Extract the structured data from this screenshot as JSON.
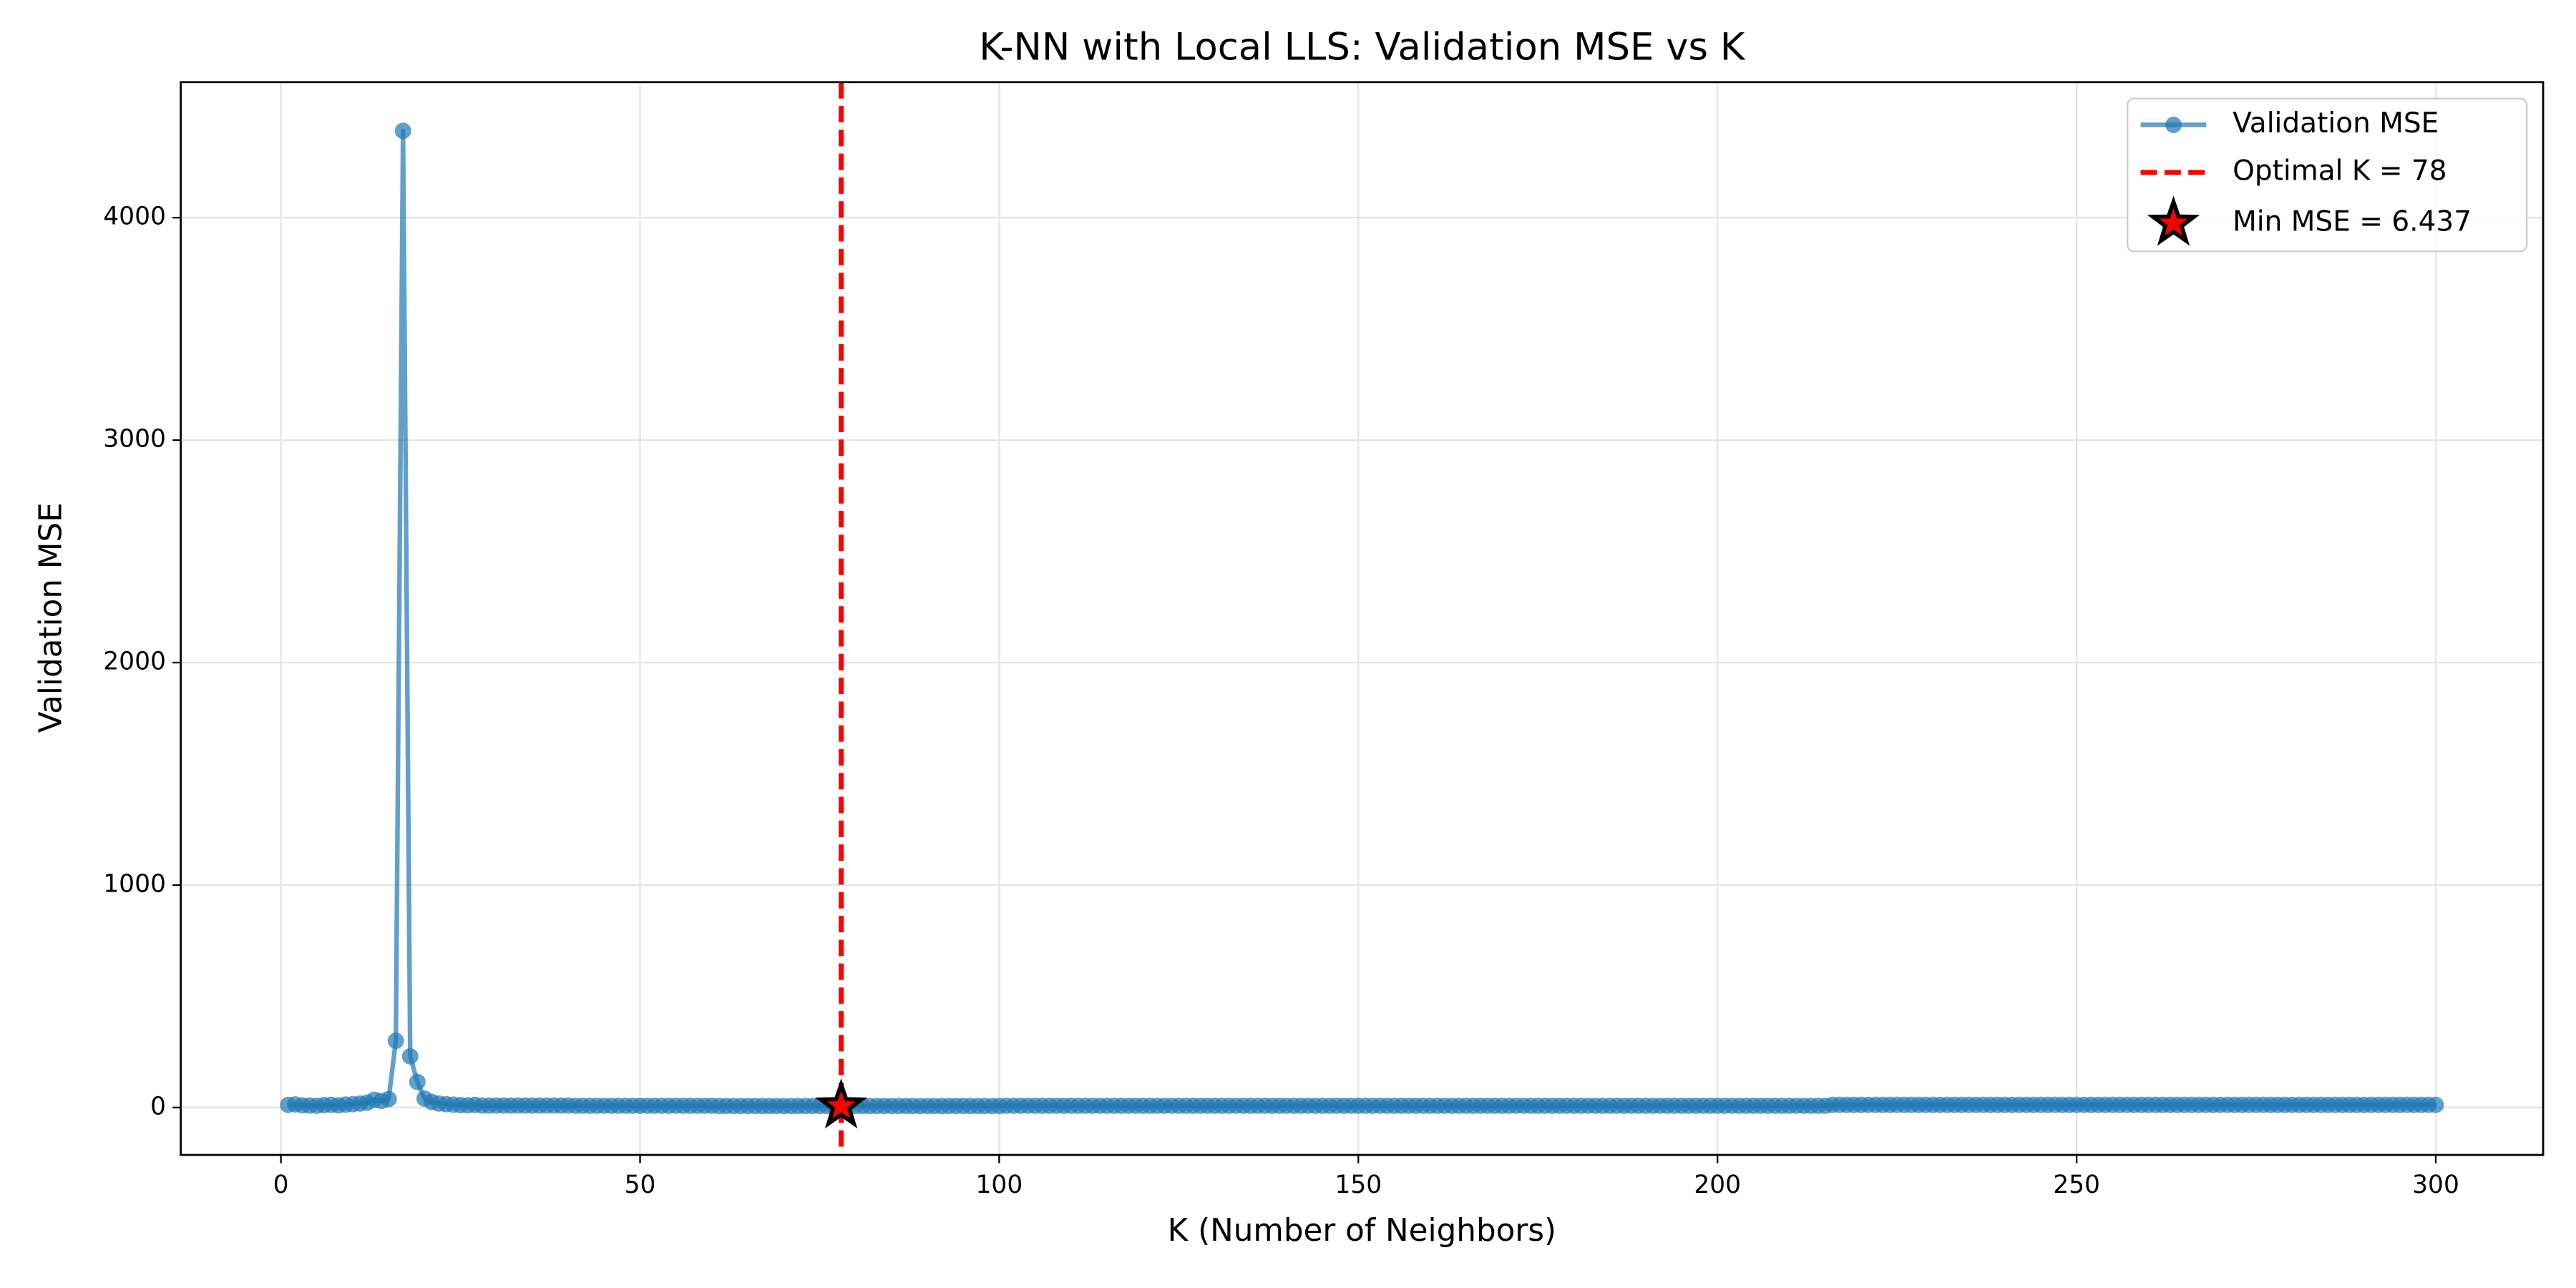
{
  "chart_data": {
    "type": "line",
    "title": "K-NN with Local LLS: Validation MSE vs K",
    "x_label": "K (Number of Neighbors)",
    "y_label": "Validation MSE",
    "x": [
      1,
      2,
      3,
      4,
      5,
      6,
      7,
      8,
      9,
      10,
      11,
      12,
      13,
      14,
      15,
      16,
      17,
      18,
      19,
      20,
      21,
      22,
      23,
      24,
      25,
      26,
      27,
      28,
      29,
      30,
      31,
      32,
      33,
      34,
      35,
      36,
      37,
      38,
      39,
      40,
      41,
      42,
      43,
      44,
      45,
      46,
      47,
      48,
      49,
      50,
      51,
      52,
      53,
      54,
      55,
      56,
      57,
      58,
      59,
      60,
      61,
      62,
      63,
      64,
      65,
      66,
      67,
      68,
      69,
      70,
      71,
      72,
      73,
      74,
      75,
      76,
      77,
      78,
      79,
      80,
      81,
      82,
      83,
      84,
      85,
      86,
      87,
      88,
      89,
      90,
      91,
      92,
      93,
      94,
      95,
      96,
      97,
      98,
      99,
      100,
      101,
      102,
      103,
      104,
      105,
      106,
      107,
      108,
      109,
      110,
      111,
      112,
      113,
      114,
      115,
      116,
      117,
      118,
      119,
      120,
      121,
      122,
      123,
      124,
      125,
      126,
      127,
      128,
      129,
      130,
      131,
      132,
      133,
      134,
      135,
      136,
      137,
      138,
      139,
      140,
      141,
      142,
      143,
      144,
      145,
      146,
      147,
      148,
      149,
      150,
      151,
      152,
      153,
      154,
      155,
      156,
      157,
      158,
      159,
      160,
      161,
      162,
      163,
      164,
      165,
      166,
      167,
      168,
      169,
      170,
      171,
      172,
      173,
      174,
      175,
      176,
      177,
      178,
      179,
      180,
      181,
      182,
      183,
      184,
      185,
      186,
      187,
      188,
      189,
      190,
      191,
      192,
      193,
      194,
      195,
      196,
      197,
      198,
      199,
      200,
      201,
      202,
      203,
      204,
      205,
      206,
      207,
      208,
      209,
      210,
      211,
      212,
      213,
      214,
      215,
      216,
      217,
      218,
      219,
      220,
      221,
      222,
      223,
      224,
      225,
      226,
      227,
      228,
      229,
      230,
      231,
      232,
      233,
      234,
      235,
      236,
      237,
      238,
      239,
      240,
      241,
      242,
      243,
      244,
      245,
      246,
      247,
      248,
      249,
      250,
      251,
      252,
      253,
      254,
      255,
      256,
      257,
      258,
      259,
      260,
      261,
      262,
      263,
      264,
      265,
      266,
      267,
      268,
      269,
      270,
      271,
      272,
      273,
      274,
      275,
      276,
      277,
      278,
      279,
      280,
      281,
      282,
      283,
      284,
      285,
      286,
      287,
      288,
      289,
      290,
      291,
      292,
      293,
      294,
      295,
      296,
      297,
      298,
      299,
      300
    ],
    "series": [
      {
        "name": "Validation MSE",
        "color": "#1f77b4",
        "values": [
          12,
          14,
          10,
          9,
          8,
          11,
          12,
          10,
          13,
          15,
          18,
          22,
          35,
          30,
          38,
          300,
          4390,
          230,
          115,
          40,
          25,
          18,
          15,
          13,
          11,
          10,
          12,
          9,
          9,
          9,
          9,
          9,
          9,
          9,
          9,
          9,
          9,
          9,
          9,
          9,
          8,
          8,
          8,
          8,
          8,
          8,
          8,
          8,
          8,
          8,
          8,
          8,
          8,
          8,
          8,
          8,
          8,
          8,
          8,
          8,
          7,
          7,
          7,
          7,
          7,
          7,
          7,
          7,
          7,
          7,
          7,
          7,
          7,
          7,
          7,
          7,
          7,
          6.437,
          7,
          7,
          7,
          7,
          7,
          7,
          7,
          7,
          7,
          7,
          7,
          7,
          7,
          7,
          7,
          7,
          7,
          7,
          7,
          7,
          7,
          7,
          8,
          8,
          8,
          8,
          8,
          8,
          8,
          8,
          8,
          8,
          8,
          8,
          8,
          8,
          8,
          8,
          8,
          8,
          8,
          8,
          8,
          8,
          8,
          8,
          8,
          8,
          8,
          8,
          8,
          8,
          8,
          8,
          8,
          8,
          8,
          8,
          8,
          8,
          8,
          8,
          8,
          8,
          8,
          8,
          8,
          8,
          8,
          8,
          8,
          8,
          8,
          8,
          8,
          8,
          8,
          8,
          8,
          8,
          8,
          8,
          8,
          8,
          8,
          8,
          8,
          8,
          8,
          8,
          8,
          8,
          8,
          8,
          8,
          8,
          8,
          8,
          8,
          8,
          8,
          8,
          8,
          8,
          8,
          8,
          8,
          8,
          8,
          8,
          8,
          8,
          8,
          8,
          8,
          8,
          8,
          8,
          8,
          8,
          8,
          8,
          8,
          8,
          8,
          8,
          8,
          8,
          8,
          8,
          8,
          8,
          8,
          8,
          8,
          8,
          8,
          12,
          12,
          12,
          12,
          12,
          12,
          12,
          12,
          12,
          12,
          12,
          12,
          12,
          12,
          12,
          12,
          12,
          12,
          12,
          12,
          12,
          12,
          12,
          12,
          12,
          12,
          12,
          12,
          12,
          12,
          12,
          12,
          12,
          12,
          12,
          12,
          12,
          12,
          12,
          12,
          12,
          12,
          12,
          12,
          12,
          12,
          12,
          12,
          12,
          12,
          12,
          12,
          12,
          12,
          12,
          12,
          12,
          12,
          12,
          12,
          12,
          12,
          12,
          12,
          12,
          12,
          12,
          12,
          12,
          12,
          12,
          12,
          12,
          12,
          12,
          12,
          12,
          12,
          12,
          12,
          12,
          12,
          12,
          12,
          12
        ]
      }
    ],
    "optimal": {
      "x": 78,
      "label": "Optimal K = 78",
      "color": "#ff0000"
    },
    "minimum": {
      "x": 78,
      "y": 6.437,
      "label": "Min MSE = 6.437",
      "color": "#ff0000"
    },
    "xlim": [
      -13.95,
      314.95
    ],
    "ylim": [
      -213,
      4609
    ],
    "xticks": [
      0,
      50,
      100,
      150,
      200,
      250,
      300
    ],
    "yticks": [
      0,
      1000,
      2000,
      3000,
      4000
    ],
    "grid": true,
    "legend": "upper right"
  }
}
